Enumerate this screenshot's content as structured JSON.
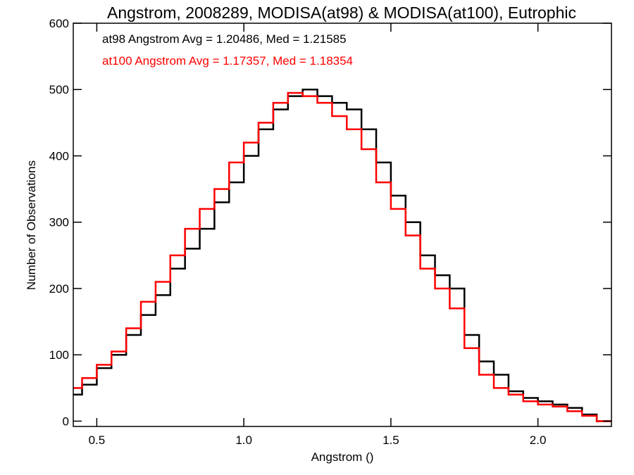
{
  "chart_data": {
    "type": "line",
    "title": "Angstrom, 2008289, MODISA(at98) & MODISA(at100), Eutrophic",
    "xlabel": "Angstrom ()",
    "ylabel": "Number of Observations",
    "xlim": [
      0.42,
      2.25
    ],
    "ylim": [
      -8,
      600
    ],
    "xticks": [
      0.5,
      1.0,
      1.5,
      2.0
    ],
    "xtick_labels": [
      "0.5",
      "1.0",
      "1.5",
      "2.0"
    ],
    "yticks": [
      0,
      100,
      200,
      300,
      400,
      500,
      600
    ],
    "ytick_labels": [
      "0",
      "100",
      "200",
      "300",
      "400",
      "500",
      "600"
    ],
    "grid": false,
    "legend_placement": "top-left",
    "annotations": [
      {
        "text": "at98 Angstrom Avg = 1.20486, Med = 1.21585",
        "color": "#000000"
      },
      {
        "text": "at100 Angstrom Avg = 1.17357, Med = 1.18354",
        "color": "#ff0000"
      }
    ],
    "series": [
      {
        "color": "#000000",
        "step": true,
        "x": [
          0.42,
          0.45,
          0.5,
          0.55,
          0.6,
          0.65,
          0.7,
          0.75,
          0.8,
          0.85,
          0.9,
          0.95,
          1.0,
          1.05,
          1.1,
          1.15,
          1.2,
          1.25,
          1.3,
          1.35,
          1.4,
          1.45,
          1.5,
          1.55,
          1.6,
          1.65,
          1.7,
          1.75,
          1.8,
          1.85,
          1.9,
          1.95,
          2.0,
          2.05,
          2.1,
          2.15,
          2.2,
          2.25
        ],
        "y": [
          40,
          55,
          80,
          100,
          130,
          160,
          190,
          230,
          260,
          290,
          330,
          360,
          400,
          440,
          470,
          490,
          500,
          490,
          480,
          470,
          440,
          390,
          340,
          300,
          250,
          220,
          200,
          130,
          90,
          70,
          45,
          35,
          30,
          25,
          20,
          10,
          0,
          0
        ]
      },
      {
        "color": "#ff0000",
        "step": true,
        "x": [
          0.42,
          0.45,
          0.5,
          0.55,
          0.6,
          0.65,
          0.7,
          0.75,
          0.8,
          0.85,
          0.9,
          0.95,
          1.0,
          1.05,
          1.1,
          1.15,
          1.2,
          1.25,
          1.3,
          1.35,
          1.4,
          1.45,
          1.5,
          1.55,
          1.6,
          1.65,
          1.7,
          1.75,
          1.8,
          1.85,
          1.9,
          1.95,
          2.0,
          2.05,
          2.1,
          2.15,
          2.2,
          2.25
        ],
        "y": [
          50,
          65,
          85,
          105,
          140,
          180,
          210,
          250,
          290,
          320,
          350,
          390,
          420,
          450,
          480,
          495,
          490,
          480,
          460,
          440,
          410,
          360,
          320,
          280,
          230,
          200,
          170,
          110,
          70,
          50,
          40,
          30,
          25,
          22,
          15,
          8,
          0,
          0
        ]
      }
    ]
  }
}
